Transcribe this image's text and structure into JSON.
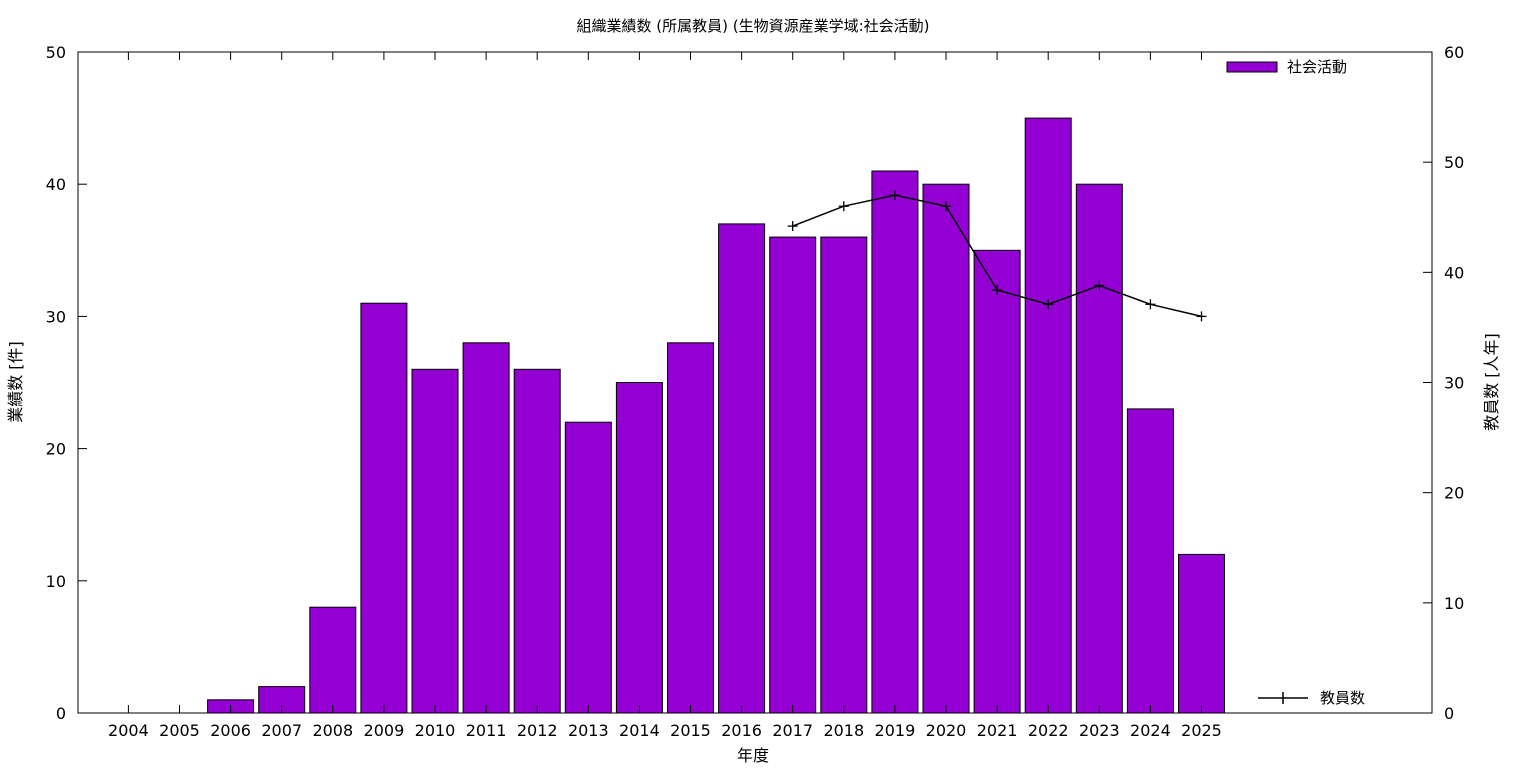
{
  "chart_data": {
    "type": "bar",
    "title": "組織業績数 (所属教員) (生物資源産業学域:社会活動)",
    "xlabel": "年度",
    "ylabel": "業績数 [件]",
    "y2label": "教員数 [人年]",
    "categories": [
      "2004",
      "2005",
      "2006",
      "2007",
      "2008",
      "2009",
      "2010",
      "2011",
      "2012",
      "2013",
      "2014",
      "2015",
      "2016",
      "2017",
      "2018",
      "2019",
      "2020",
      "2021",
      "2022",
      "2023",
      "2024",
      "2025"
    ],
    "ylim": [
      0,
      50
    ],
    "y2lim": [
      0,
      60
    ],
    "yticks": [
      "0",
      "10",
      "20",
      "30",
      "40",
      "50"
    ],
    "y2ticks": [
      "0",
      "10",
      "20",
      "30",
      "40",
      "50",
      "60"
    ],
    "grid": false,
    "series": [
      {
        "name": "社会活動",
        "type": "bar",
        "axis": "left",
        "color": "#9400d3",
        "values": [
          0,
          0,
          1,
          2,
          8,
          31,
          26,
          28,
          26,
          22,
          25,
          28,
          37,
          36,
          36,
          41,
          40,
          35,
          45,
          40,
          23,
          12
        ]
      },
      {
        "name": "教員数",
        "type": "line",
        "axis": "right",
        "color": "#000000",
        "x": [
          "2017",
          "2018",
          "2019",
          "2020",
          "2021",
          "2022",
          "2023",
          "2024",
          "2025"
        ],
        "values": [
          44.2,
          46.0,
          47.0,
          46.0,
          38.4,
          37.1,
          38.8,
          37.1,
          36.0
        ]
      }
    ],
    "legend": [
      {
        "label": "社会活動",
        "placement": "top-right"
      },
      {
        "label": "教員数",
        "placement": "bottom-right"
      }
    ]
  }
}
